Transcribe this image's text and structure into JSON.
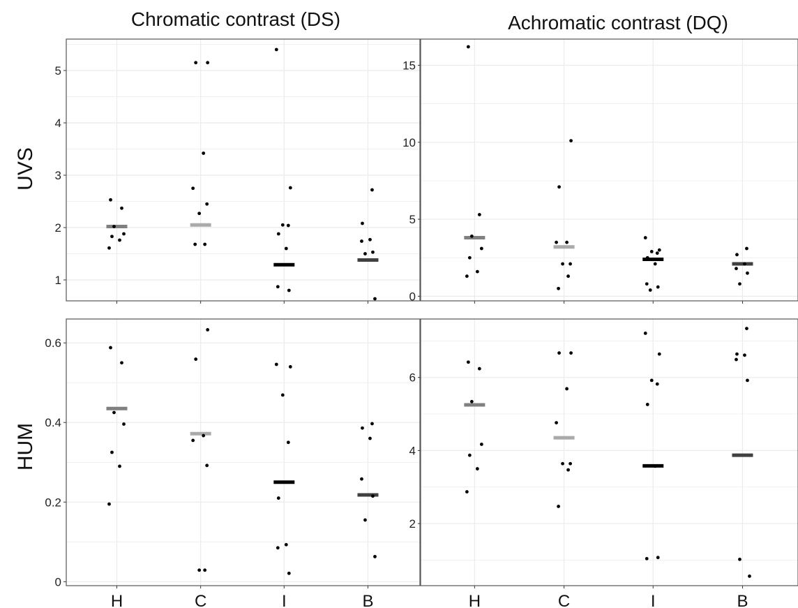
{
  "figure": {
    "col_titles": [
      "Chromatic contrast (DS)",
      "Achromatic contrast (DQ)"
    ],
    "row_labels": [
      "UVS",
      "HUM"
    ],
    "categories": [
      "H",
      "C",
      "I",
      "B"
    ],
    "median_colors": [
      "#808080",
      "#aaaaaa",
      "#000000",
      "#404040"
    ],
    "point_color": "#000000",
    "grid_color": "#ebebeb",
    "frame_color": "#555555"
  },
  "chart_data": [
    {
      "type": "scatter",
      "id": "uvs-ds",
      "ylim": [
        0.6,
        5.6
      ],
      "yticks": [
        1,
        2,
        3,
        4,
        5
      ],
      "categories": [
        "H",
        "C",
        "I",
        "B"
      ],
      "groups": [
        {
          "category": "H",
          "median": 2.02,
          "points": [
            2.53,
            2.37,
            2.02,
            1.88,
            1.83,
            1.76,
            1.61
          ]
        },
        {
          "category": "C",
          "median": 2.05,
          "points": [
            5.15,
            5.15,
            3.42,
            2.75,
            2.45,
            2.27,
            1.68,
            1.68
          ]
        },
        {
          "category": "I",
          "median": 1.29,
          "points": [
            5.4,
            2.76,
            2.05,
            2.04,
            1.88,
            1.6,
            0.87,
            0.8
          ]
        },
        {
          "category": "B",
          "median": 1.38,
          "points": [
            2.72,
            2.08,
            1.77,
            1.74,
            1.53,
            1.5,
            0.64
          ]
        }
      ]
    },
    {
      "type": "scatter",
      "id": "uvs-dq",
      "ylim": [
        -0.3,
        16.7
      ],
      "yticks": [
        0,
        5,
        10,
        15
      ],
      "categories": [
        "H",
        "C",
        "I",
        "B"
      ],
      "groups": [
        {
          "category": "H",
          "median": 3.8,
          "points": [
            16.2,
            5.3,
            3.9,
            3.1,
            2.5,
            1.6,
            1.3
          ]
        },
        {
          "category": "C",
          "median": 3.2,
          "points": [
            10.1,
            7.1,
            3.5,
            3.5,
            2.1,
            2.1,
            1.3,
            0.5
          ]
        },
        {
          "category": "I",
          "median": 2.4,
          "points": [
            3.8,
            3.0,
            2.9,
            2.8,
            2.5,
            2.1,
            0.8,
            0.6,
            0.4
          ]
        },
        {
          "category": "B",
          "median": 2.1,
          "points": [
            3.1,
            2.7,
            2.1,
            1.8,
            1.5,
            0.8
          ]
        }
      ]
    },
    {
      "type": "scatter",
      "id": "hum-ds",
      "ylim": [
        -0.01,
        0.66
      ],
      "yticks": [
        0,
        0.2,
        0.4,
        0.6
      ],
      "ytick_labels": [
        "0",
        "0.2",
        "0.4",
        "0.6"
      ],
      "categories": [
        "H",
        "C",
        "I",
        "B"
      ],
      "groups": [
        {
          "category": "H",
          "median": 0.435,
          "points": [
            0.588,
            0.55,
            0.425,
            0.396,
            0.325,
            0.29,
            0.195
          ]
        },
        {
          "category": "C",
          "median": 0.372,
          "points": [
            0.633,
            0.559,
            0.367,
            0.355,
            0.292,
            0.029,
            0.029
          ]
        },
        {
          "category": "I",
          "median": 0.25,
          "points": [
            0.546,
            0.54,
            0.469,
            0.35,
            0.21,
            0.093,
            0.085,
            0.021
          ]
        },
        {
          "category": "B",
          "median": 0.218,
          "points": [
            0.397,
            0.386,
            0.36,
            0.258,
            0.215,
            0.155,
            0.063
          ]
        }
      ]
    },
    {
      "type": "scatter",
      "id": "hum-dq",
      "ylim": [
        0.3,
        7.6
      ],
      "yticks": [
        2,
        4,
        6
      ],
      "categories": [
        "H",
        "C",
        "I",
        "B"
      ],
      "groups": [
        {
          "category": "H",
          "median": 5.25,
          "points": [
            6.42,
            6.24,
            5.34,
            4.17,
            3.87,
            3.5,
            2.87
          ]
        },
        {
          "category": "C",
          "median": 4.35,
          "points": [
            6.67,
            6.67,
            5.69,
            4.76,
            3.64,
            3.64,
            3.47,
            2.47
          ]
        },
        {
          "category": "I",
          "median": 3.58,
          "points": [
            7.21,
            6.64,
            5.92,
            5.82,
            5.26,
            3.57,
            1.04,
            1.07
          ]
        },
        {
          "category": "B",
          "median": 3.87,
          "points": [
            7.34,
            6.64,
            6.61,
            6.49,
            5.92,
            1.02,
            0.56
          ]
        }
      ]
    }
  ]
}
